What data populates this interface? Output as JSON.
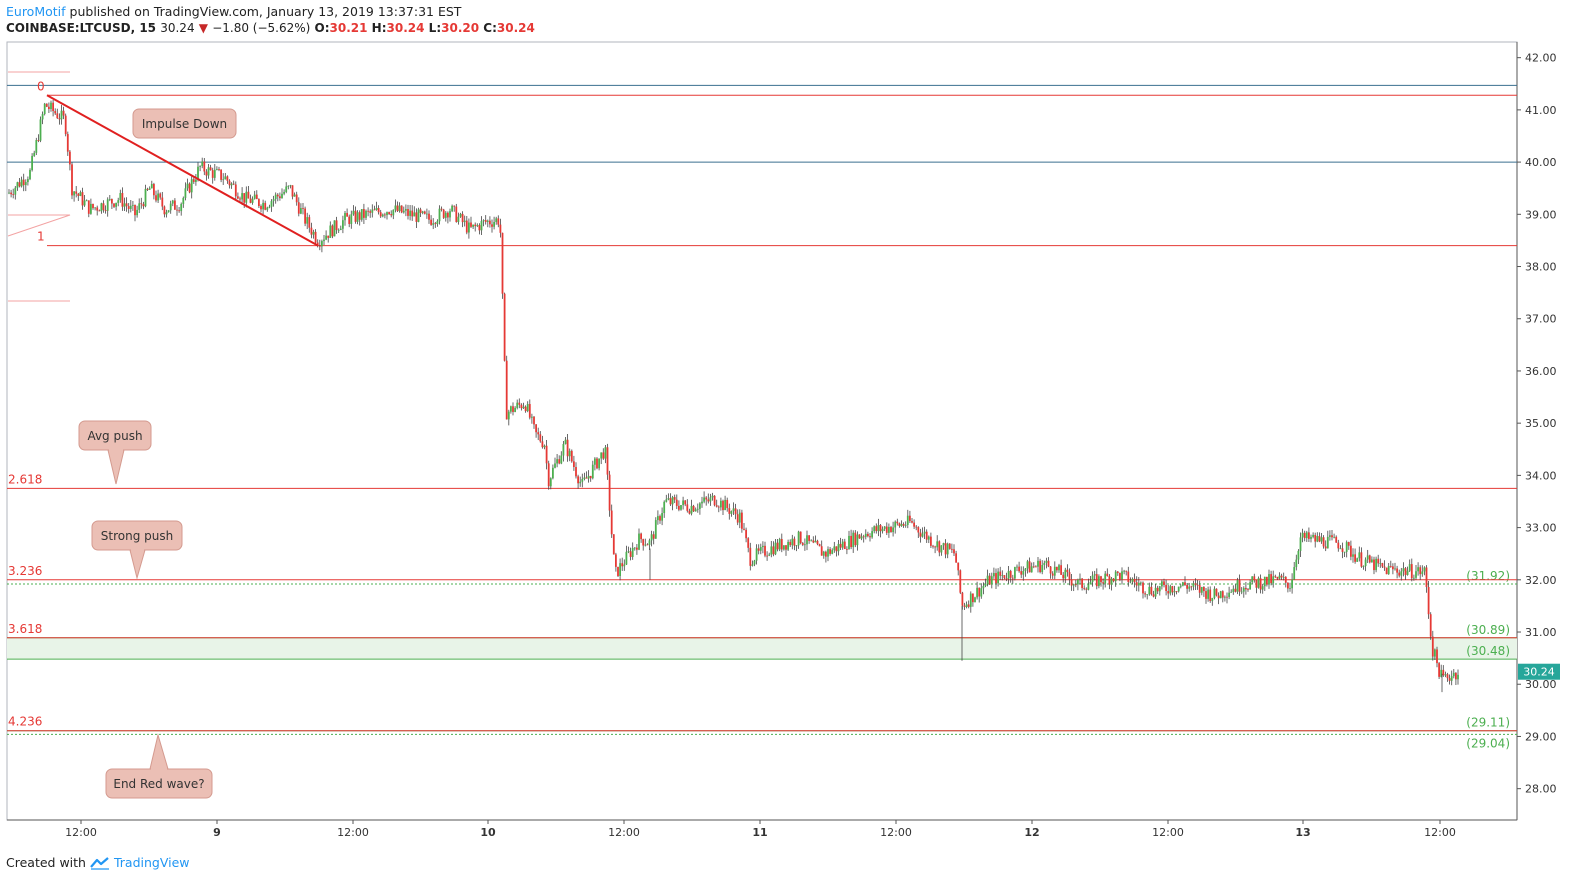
{
  "header": {
    "author": "EuroMotif",
    "published_text": "published on TradingView.com, January 13, 2019 13:37:31 EST",
    "symbol": "COINBASE:LTCUSD, 15",
    "last": "30.24",
    "change": "−1.80 (−5.62%)",
    "o_label": "O:",
    "o": "30.21",
    "h_label": "H:",
    "h": "30.24",
    "l_label": "L:",
    "l": "30.20",
    "c_label": "C:",
    "c": "30.24"
  },
  "footer": {
    "created_with": "Created with",
    "brand": "TradingView"
  },
  "colors": {
    "up": "#4caf50",
    "down": "#e53935",
    "fib": "#e53935",
    "blue_line": "#3a6f8f",
    "green_line": "#4caf50",
    "label_bg": "#ebbfb5",
    "zone": "#e8f4e8"
  },
  "chart_data": {
    "type": "candlestick",
    "ylim": [
      27.4,
      42.3
    ],
    "y_ticks": [
      "42.00",
      "41.00",
      "40.00",
      "39.00",
      "38.00",
      "37.00",
      "36.00",
      "35.00",
      "34.00",
      "33.00",
      "32.00",
      "31.00",
      "30.00",
      "29.00",
      "28.00"
    ],
    "x_ticks": [
      "12:00",
      "9",
      "12:00",
      "10",
      "12:00",
      "11",
      "12:00",
      "12",
      "12:00",
      "13",
      "12:00"
    ],
    "bold_x_ticks": [
      "9",
      "10",
      "11",
      "12",
      "13"
    ],
    "last_price_label": "30.24",
    "fib_levels": [
      {
        "label": "0",
        "price": 41.28
      },
      {
        "label": "1",
        "price": 38.4
      },
      {
        "label": "2.618",
        "price": 33.75
      },
      {
        "label": "3.236",
        "price": 32.0
      },
      {
        "label": "3.618",
        "price": 30.89
      },
      {
        "label": "4.236",
        "price": 29.11
      }
    ],
    "horizontal_lines": [
      {
        "price": 41.47,
        "style": "blue"
      },
      {
        "price": 40.0,
        "style": "blue"
      },
      {
        "price": 31.92,
        "style": "green-dotted",
        "label": "(31.92)"
      },
      {
        "price": 30.89,
        "style": "green",
        "label": "(30.89)"
      },
      {
        "price": 30.48,
        "style": "green",
        "label": "(30.48)"
      },
      {
        "price": 29.11,
        "style": "green",
        "label": "(29.11)"
      },
      {
        "price": 29.04,
        "style": "green-dotted",
        "label": "(29.04)"
      }
    ],
    "impulse_line": {
      "from_price": 41.28,
      "to_price": 38.4
    },
    "callouts": [
      "Impulse Down",
      "Avg push",
      "Strong push",
      "End Red wave?"
    ],
    "path_anchors": [
      {
        "p": 39.4
      },
      {
        "p": 39.8
      },
      {
        "p": 41.1
      },
      {
        "p": 40.8
      },
      {
        "p": 39.5
      },
      {
        "p": 39.1
      },
      {
        "p": 39.3
      },
      {
        "p": 39.0
      },
      {
        "p": 39.5
      },
      {
        "p": 39.1
      },
      {
        "p": 39.2
      },
      {
        "p": 39.9
      },
      {
        "p": 39.7
      },
      {
        "p": 39.3
      },
      {
        "p": 39.2
      },
      {
        "p": 39.5
      },
      {
        "p": 38.9
      },
      {
        "p": 38.5
      },
      {
        "p": 38.9
      },
      {
        "p": 39.1
      },
      {
        "p": 38.9
      },
      {
        "p": 39.1
      },
      {
        "p": 38.7
      },
      {
        "p": 38.85
      },
      {
        "p": 38.9
      },
      {
        "p": 35.2
      },
      {
        "p": 35.4
      },
      {
        "p": 34.8
      },
      {
        "p": 34.6
      },
      {
        "p": 33.9
      },
      {
        "p": 34.6
      },
      {
        "p": 33.8
      },
      {
        "p": 34.5
      },
      {
        "p": 32.1
      },
      {
        "p": 32.8
      },
      {
        "p": 32.7
      },
      {
        "p": 33.5
      },
      {
        "p": 33.4
      },
      {
        "p": 33.55
      },
      {
        "p": 33.2
      },
      {
        "p": 32.4
      },
      {
        "p": 32.6
      },
      {
        "p": 32.8
      },
      {
        "p": 32.5
      },
      {
        "p": 32.9
      },
      {
        "p": 33.1
      },
      {
        "p": 32.7
      },
      {
        "p": 32.5
      },
      {
        "p": 31.5
      },
      {
        "p": 32.0
      },
      {
        "p": 32.2
      },
      {
        "p": 32.3
      },
      {
        "p": 31.9
      },
      {
        "p": 32.1
      },
      {
        "p": 31.8
      },
      {
        "p": 31.9
      },
      {
        "p": 31.7
      },
      {
        "p": 31.9
      },
      {
        "p": 32.0
      },
      {
        "p": 31.9
      },
      {
        "p": 32.8
      },
      {
        "p": 32.7
      },
      {
        "p": 32.4
      },
      {
        "p": 32.2
      },
      {
        "p": 32.15
      },
      {
        "p": 30.7
      },
      {
        "p": 30.1
      },
      {
        "p": 30.24
      }
    ]
  }
}
